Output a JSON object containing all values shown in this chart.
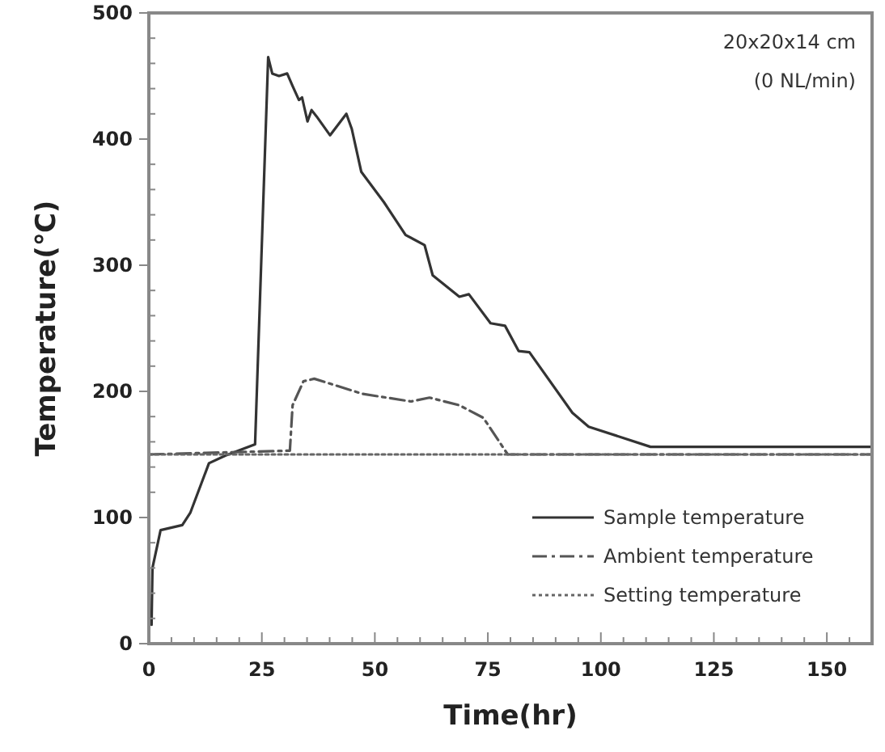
{
  "chart_data": {
    "type": "line",
    "xlabel": "Time(hr)",
    "ylabel": "Temperature(℃)",
    "xlim": [
      0,
      160
    ],
    "ylim": [
      0,
      500
    ],
    "xticks": [
      0,
      {
        "value": 5,
        "label": null
      },
      {
        "value": 10,
        "label": null
      },
      {
        "value": 15,
        "label": null
      },
      {
        "value": 20,
        "label": null
      },
      25,
      {
        "value": 30,
        "label": null
      },
      {
        "value": 35,
        "label": null
      },
      {
        "value": 40,
        "label": null
      },
      {
        "value": 45,
        "label": null
      },
      50,
      {
        "value": 55,
        "label": null
      },
      {
        "value": 60,
        "label": null
      },
      {
        "value": 65,
        "label": null
      },
      {
        "value": 70,
        "label": null
      },
      75,
      {
        "value": 80,
        "label": null
      },
      {
        "value": 85,
        "label": null
      },
      {
        "value": 90,
        "label": null
      },
      {
        "value": 95,
        "label": null
      },
      100,
      {
        "value": 105,
        "label": null
      },
      {
        "value": 110,
        "label": null
      },
      {
        "value": 115,
        "label": null
      },
      {
        "value": 120,
        "label": null
      },
      125,
      {
        "value": 130,
        "label": null
      },
      {
        "value": 135,
        "label": null
      },
      {
        "value": 140,
        "label": null
      },
      {
        "value": 145,
        "label": null
      },
      150,
      {
        "value": 155,
        "label": null
      }
    ],
    "yticks": [
      0,
      {
        "value": 20,
        "label": null
      },
      {
        "value": 40,
        "label": null
      },
      {
        "value": 60,
        "label": null
      },
      {
        "value": 80,
        "label": null
      },
      100,
      {
        "value": 120,
        "label": null
      },
      {
        "value": 140,
        "label": null
      },
      {
        "value": 160,
        "label": null
      },
      {
        "value": 180,
        "label": null
      },
      200,
      {
        "value": 220,
        "label": null
      },
      {
        "value": 240,
        "label": null
      },
      {
        "value": 260,
        "label": null
      },
      {
        "value": 280,
        "label": null
      },
      300,
      {
        "value": 320,
        "label": null
      },
      {
        "value": 340,
        "label": null
      },
      {
        "value": 360,
        "label": null
      },
      {
        "value": 380,
        "label": null
      },
      400,
      {
        "value": 420,
        "label": null
      },
      {
        "value": 440,
        "label": null
      },
      {
        "value": 460,
        "label": null
      },
      {
        "value": 480,
        "label": null
      },
      500
    ],
    "grid": false,
    "legend": "bottom right",
    "marker": "none",
    "annotations": [
      "20x20x14 cm",
      "(0 NL/min)"
    ],
    "series": [
      {
        "name": "Sample temperature",
        "color": "#333333",
        "line_style": "solid",
        "x": [
          0.6,
          0.8,
          2.6,
          7.4,
          9.2,
          13.3,
          16.9,
          23.5,
          26.4,
          27.3,
          28.8,
          30.6,
          31.8,
          33.2,
          33.9,
          34.4,
          35.1,
          36,
          37.1,
          40.1,
          43.7,
          44.9,
          47,
          52,
          56.8,
          61,
          62.8,
          68.7,
          70.8,
          75.6,
          78.8,
          81.8,
          84.2,
          93.7,
          97.3,
          111,
          160
        ],
        "values": [
          15,
          60,
          90,
          94,
          104,
          143,
          149,
          158,
          465,
          452,
          450,
          452,
          442,
          431,
          433,
          425,
          414,
          423,
          418,
          403,
          420,
          408,
          374,
          350,
          324,
          316,
          292,
          275,
          277,
          254,
          252,
          232,
          231,
          183,
          172,
          156,
          156
        ]
      },
      {
        "name": "Ambient temperature",
        "color": "#555555",
        "line_style": "dashdot",
        "x": [
          0,
          31.2,
          31.8,
          34.2,
          36.6,
          47.3,
          58,
          62.1,
          68.7,
          74,
          79.4,
          160
        ],
        "values": [
          150,
          153,
          189,
          208,
          210,
          198,
          192,
          195,
          189,
          179,
          150,
          150
        ]
      },
      {
        "name": "Setting temperature",
        "color": "#666666",
        "line_style": "dotted",
        "x": [
          0,
          160
        ],
        "values": [
          150,
          150
        ]
      }
    ]
  }
}
